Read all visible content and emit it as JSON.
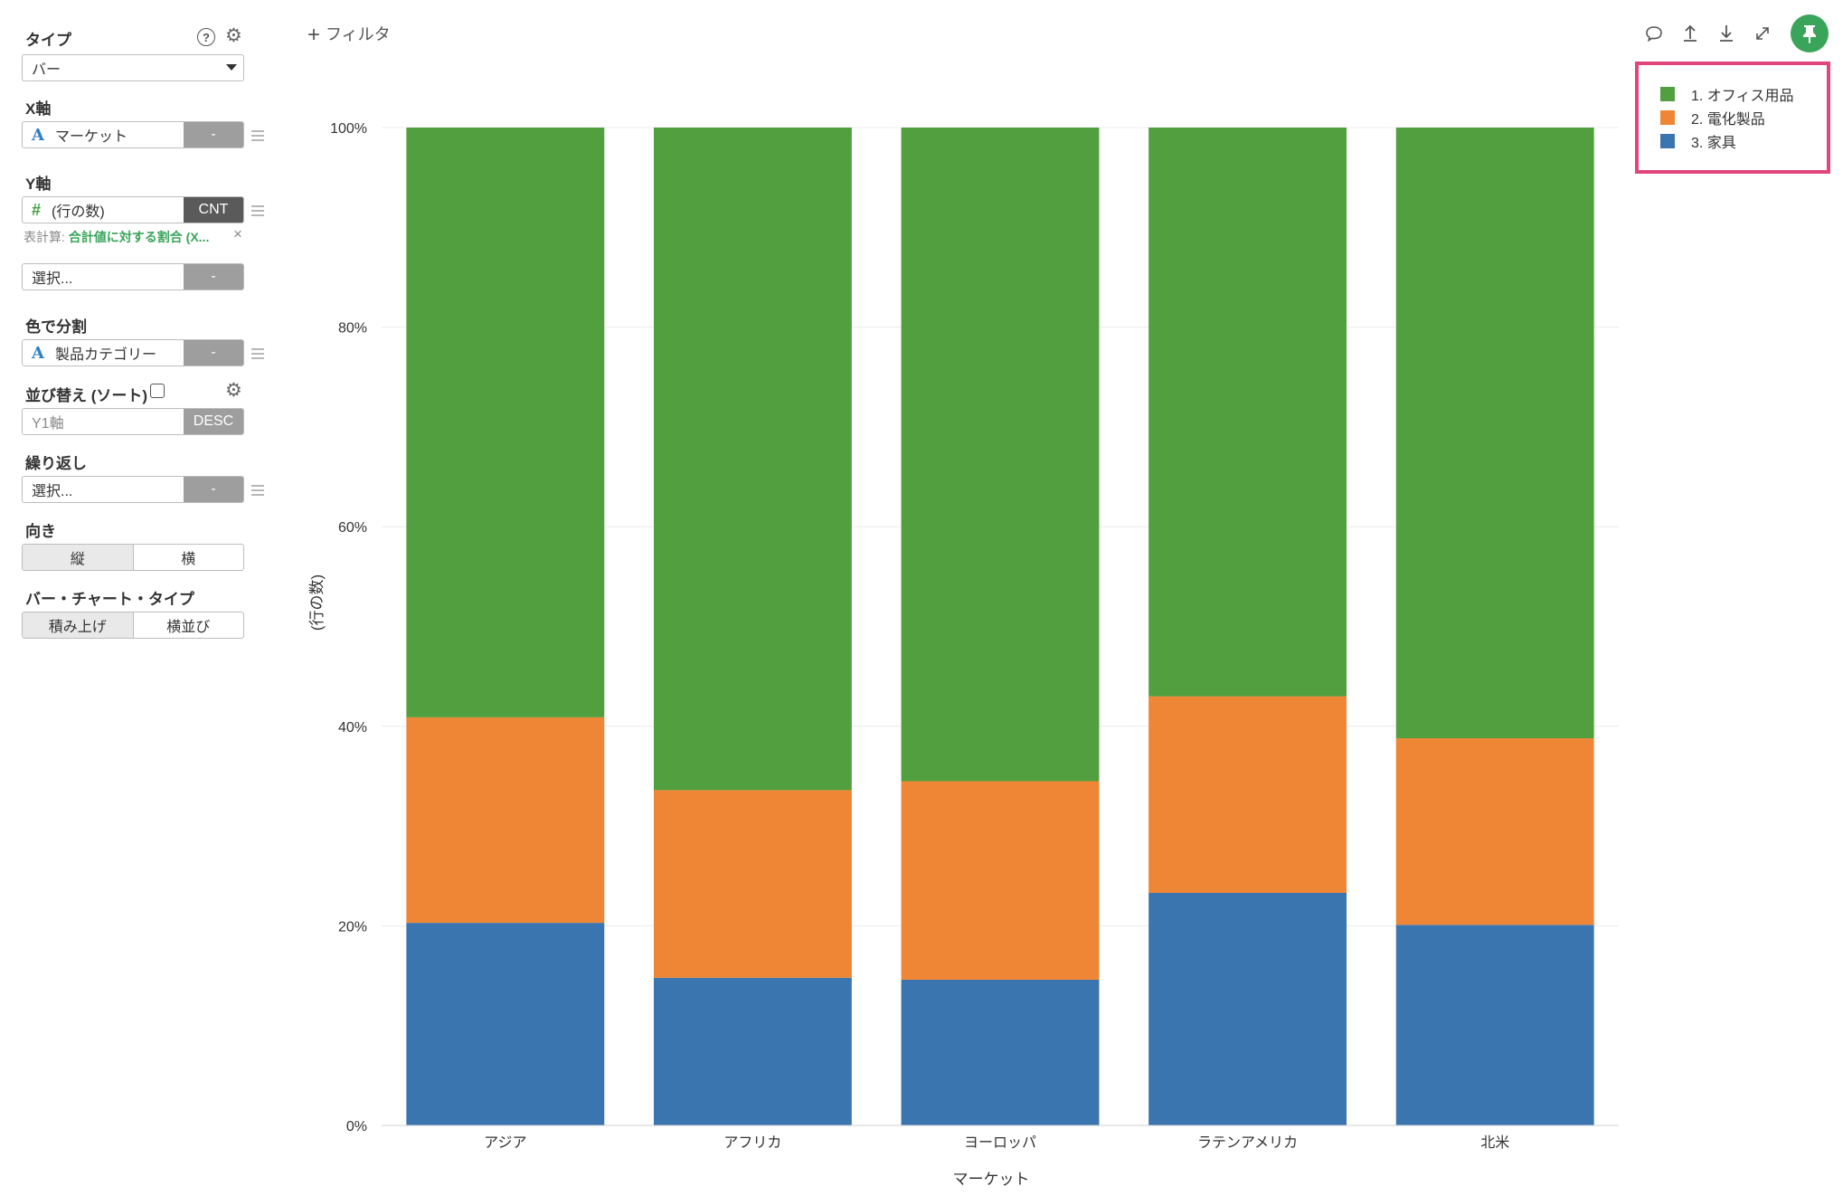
{
  "panel": {
    "type_label": "タイプ",
    "type_value": "バー",
    "x_axis_label": "X軸",
    "x_axis_field": "マーケット",
    "x_axis_agg": "-",
    "y_axis_label": "Y軸",
    "y_axis_field": "(行の数)",
    "y_axis_agg": "CNT",
    "calc_prefix": "表計算:",
    "calc_value": "合計値に対する割合 (X...",
    "y2_placeholder": "選択...",
    "y2_agg": "-",
    "color_label": "色で分割",
    "color_field": "製品カテゴリー",
    "color_agg": "-",
    "sort_label": "並び替え (ソート)",
    "sort_field": "Y1軸",
    "sort_order": "DESC",
    "repeat_label": "繰り返し",
    "repeat_placeholder": "選択...",
    "repeat_agg": "-",
    "orientation_label": "向き",
    "orientation_options": [
      "縦",
      "横"
    ],
    "bar_type_label": "バー・チャート・タイプ",
    "bar_type_options": [
      "積み上げ",
      "横並び"
    ]
  },
  "toolbar": {
    "filter_label": "フィルタ",
    "icons": [
      "comment-icon",
      "upload-icon",
      "download-icon",
      "expand-icon",
      "pin-icon"
    ]
  },
  "legend": {
    "items": [
      {
        "label": "1. オフィス用品",
        "color": "#519f3f"
      },
      {
        "label": "2. 電化製品",
        "color": "#ee8635"
      },
      {
        "label": "3. 家具",
        "color": "#3b75b0"
      }
    ]
  },
  "chart_data": {
    "type": "bar",
    "stacked": true,
    "categories": [
      "アジア",
      "アフリカ",
      "ヨーロッパ",
      "ラテンアメリカ",
      "北米"
    ],
    "series": [
      {
        "name": "3. 家具",
        "color": "#3b75b0",
        "values": [
          20.3,
          14.8,
          14.6,
          23.3,
          20.1
        ]
      },
      {
        "name": "2. 電化製品",
        "color": "#ee8635",
        "values": [
          20.6,
          18.8,
          19.9,
          19.7,
          18.7
        ]
      },
      {
        "name": "1. オフィス用品",
        "color": "#519f3f",
        "values": [
          59.1,
          66.4,
          65.5,
          57.0,
          61.2
        ]
      }
    ],
    "xlabel": "マーケット",
    "ylabel": "(行の数)",
    "ylim": [
      0,
      100
    ],
    "yticks": [
      "0%",
      "20%",
      "40%",
      "60%",
      "80%",
      "100%"
    ],
    "grid": true,
    "legend_position": "top-right"
  }
}
